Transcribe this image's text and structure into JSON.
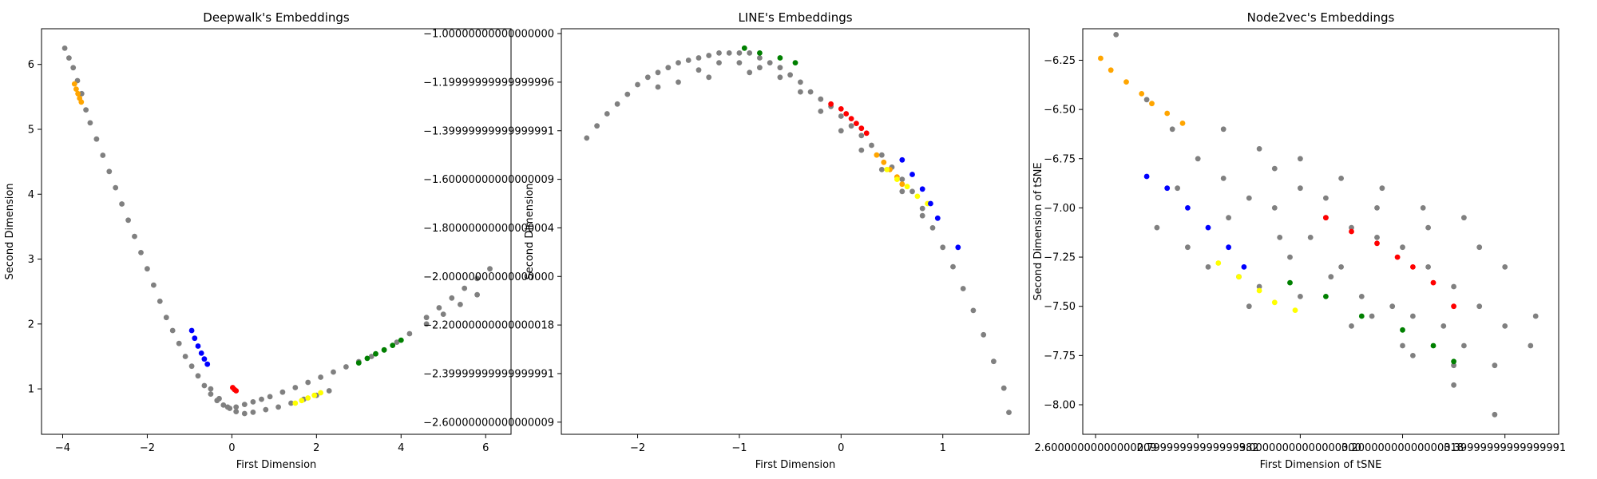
{
  "chart_data": [
    {
      "type": "scatter",
      "title": "Deepwalk's Embeddings",
      "xlabel": "First Dimension",
      "ylabel": "Second Dimension",
      "xlim": [
        -4.5,
        6.6
      ],
      "ylim": [
        0.3,
        6.55
      ],
      "xticks": [
        -4,
        -2,
        0,
        2,
        4,
        6
      ],
      "yticks": [
        1,
        2,
        3,
        4,
        5,
        6
      ],
      "grid": false,
      "series": [
        {
          "color": "#808080",
          "x": [
            -3.95,
            -3.85,
            -3.75,
            -3.65,
            -3.55,
            -3.45,
            -3.35,
            -3.2,
            -3.05,
            -2.9,
            -2.75,
            -2.6,
            -2.45,
            -2.3,
            -2.15,
            -2.0,
            -1.85,
            -1.7,
            -1.55,
            -1.4,
            -1.25,
            -1.1,
            -0.95,
            -0.8,
            -0.65,
            -0.5,
            -0.35,
            -0.2,
            -0.05,
            0.1,
            0.3,
            0.5,
            0.7,
            0.9,
            1.2,
            1.5,
            1.8,
            2.1,
            2.4,
            2.7,
            3.0,
            3.3,
            3.6,
            3.9,
            4.2,
            4.6,
            4.9,
            5.2,
            5.5,
            5.8,
            6.1,
            -0.5,
            -0.3,
            -0.1,
            0.1,
            0.3,
            0.5,
            0.8,
            1.1,
            1.4,
            1.7,
            2.0,
            2.3,
            4.6,
            5.0,
            5.4,
            5.8
          ],
          "y": [
            6.25,
            6.1,
            5.95,
            5.75,
            5.55,
            5.3,
            5.1,
            4.85,
            4.6,
            4.35,
            4.1,
            3.85,
            3.6,
            3.35,
            3.1,
            2.85,
            2.6,
            2.35,
            2.1,
            1.9,
            1.7,
            1.5,
            1.35,
            1.2,
            1.05,
            0.92,
            0.82,
            0.75,
            0.7,
            0.72,
            0.76,
            0.8,
            0.84,
            0.88,
            0.95,
            1.02,
            1.1,
            1.18,
            1.26,
            1.34,
            1.42,
            1.5,
            1.6,
            1.72,
            1.85,
            2.1,
            2.25,
            2.4,
            2.55,
            2.7,
            2.85,
            1.0,
            0.85,
            0.72,
            0.65,
            0.62,
            0.64,
            0.68,
            0.72,
            0.78,
            0.84,
            0.9,
            0.97,
            2.0,
            2.15,
            2.3,
            2.45
          ]
        },
        {
          "color": "#ffa500",
          "x": [
            -3.72,
            -3.68,
            -3.64,
            -3.6,
            -3.56
          ],
          "y": [
            5.7,
            5.62,
            5.55,
            5.48,
            5.42
          ]
        },
        {
          "color": "#0000ff",
          "x": [
            -0.95,
            -0.88,
            -0.8,
            -0.72,
            -0.65,
            -0.58
          ],
          "y": [
            1.9,
            1.78,
            1.66,
            1.55,
            1.46,
            1.38
          ]
        },
        {
          "color": "#ff0000",
          "x": [
            0.02,
            0.06,
            0.1
          ],
          "y": [
            1.02,
            0.99,
            0.97
          ]
        },
        {
          "color": "#ffff00",
          "x": [
            1.5,
            1.65,
            1.8,
            1.95,
            2.1
          ],
          "y": [
            0.78,
            0.82,
            0.86,
            0.9,
            0.94
          ]
        },
        {
          "color": "#008000",
          "x": [
            3.0,
            3.2,
            3.4,
            3.6,
            3.8,
            4.0
          ],
          "y": [
            1.4,
            1.47,
            1.54,
            1.6,
            1.67,
            1.75
          ]
        }
      ]
    },
    {
      "type": "scatter",
      "title": "LINE's Embeddings",
      "xlabel": "First Dimension",
      "ylabel": "Second Dimension",
      "xlim": [
        -2.75,
        1.85
      ],
      "ylim": [
        -2.65,
        -0.98
      ],
      "xticks": [
        -2,
        -1,
        0,
        1
      ],
      "yticks": [
        -2.6,
        -2.4,
        -2.2,
        -2.0,
        -1.8,
        -1.6,
        -1.4,
        -1.2,
        -1.0
      ],
      "grid": false,
      "series": [
        {
          "color": "#808080",
          "x": [
            -2.5,
            -2.4,
            -2.3,
            -2.2,
            -2.1,
            -2.0,
            -1.9,
            -1.8,
            -1.7,
            -1.6,
            -1.5,
            -1.4,
            -1.3,
            -1.2,
            -1.1,
            -1.0,
            -0.9,
            -0.8,
            -0.7,
            -0.6,
            -0.5,
            -0.4,
            -0.3,
            -0.2,
            -0.1,
            0.0,
            0.1,
            0.2,
            0.3,
            0.4,
            0.5,
            0.6,
            0.7,
            0.8,
            0.9,
            1.0,
            1.1,
            1.2,
            1.3,
            1.4,
            1.5,
            1.6,
            1.65,
            -1.6,
            -1.4,
            -1.2,
            -1.0,
            -0.8,
            -0.6,
            -0.4,
            -0.2,
            0.0,
            0.2,
            0.4,
            0.6,
            0.8,
            -1.8,
            -1.3,
            -0.9
          ],
          "y": [
            -1.43,
            -1.38,
            -1.33,
            -1.29,
            -1.25,
            -1.21,
            -1.18,
            -1.16,
            -1.14,
            -1.12,
            -1.11,
            -1.1,
            -1.09,
            -1.08,
            -1.08,
            -1.08,
            -1.08,
            -1.1,
            -1.12,
            -1.14,
            -1.17,
            -1.2,
            -1.24,
            -1.27,
            -1.3,
            -1.34,
            -1.38,
            -1.42,
            -1.46,
            -1.5,
            -1.55,
            -1.6,
            -1.65,
            -1.72,
            -1.8,
            -1.88,
            -1.96,
            -2.05,
            -2.14,
            -2.24,
            -2.35,
            -2.46,
            -2.56,
            -1.2,
            -1.15,
            -1.12,
            -1.12,
            -1.14,
            -1.18,
            -1.24,
            -1.32,
            -1.4,
            -1.48,
            -1.56,
            -1.65,
            -1.75,
            -1.22,
            -1.18,
            -1.16
          ]
        },
        {
          "color": "#008000",
          "x": [
            -0.95,
            -0.8,
            -0.6,
            -0.45
          ],
          "y": [
            -1.06,
            -1.08,
            -1.1,
            -1.12
          ]
        },
        {
          "color": "#ff0000",
          "x": [
            -0.1,
            0.0,
            0.05,
            0.1,
            0.15,
            0.2,
            0.25
          ],
          "y": [
            -1.29,
            -1.31,
            -1.33,
            -1.35,
            -1.37,
            -1.39,
            -1.41
          ]
        },
        {
          "color": "#ffa500",
          "x": [
            0.35,
            0.42,
            0.48,
            0.55,
            0.6
          ],
          "y": [
            -1.5,
            -1.53,
            -1.56,
            -1.59,
            -1.62
          ]
        },
        {
          "color": "#ffff00",
          "x": [
            0.45,
            0.55,
            0.65,
            0.75,
            0.85
          ],
          "y": [
            -1.56,
            -1.6,
            -1.63,
            -1.67,
            -1.7
          ]
        },
        {
          "color": "#0000ff",
          "x": [
            0.6,
            0.7,
            0.8,
            0.88,
            0.95,
            1.15
          ],
          "y": [
            -1.52,
            -1.58,
            -1.64,
            -1.7,
            -1.76,
            -1.88
          ]
        }
      ]
    },
    {
      "type": "scatter",
      "title": "Node2vec's Embeddings",
      "xlabel": "First Dimension of tSNE",
      "ylabel": "Second Dimension of tSNE",
      "xlim": [
        2.575,
        3.505
      ],
      "ylim": [
        -8.15,
        -6.09
      ],
      "xticks": [
        2.6,
        2.8,
        3.0,
        3.2,
        3.4
      ],
      "yticks": [
        -8.0,
        -7.75,
        -7.5,
        -7.25,
        -7.0,
        -6.75,
        -6.5,
        -6.25
      ],
      "grid": false,
      "series": [
        {
          "color": "#808080",
          "x": [
            2.64,
            2.7,
            2.75,
            2.8,
            2.85,
            2.9,
            2.95,
            3.0,
            3.05,
            3.1,
            3.15,
            3.2,
            3.25,
            3.3,
            3.35,
            3.4,
            3.45,
            2.78,
            2.82,
            2.88,
            2.92,
            2.98,
            3.02,
            3.08,
            3.12,
            3.18,
            3.22,
            3.28,
            3.32,
            3.38,
            2.72,
            2.9,
            3.0,
            3.1,
            3.2,
            3.3,
            2.95,
            3.05,
            3.15,
            3.25,
            3.35,
            2.85,
            2.92,
            3.0,
            3.08,
            3.16,
            3.24,
            3.32,
            3.4,
            3.46,
            2.76,
            2.86,
            2.96,
            3.06,
            3.14,
            3.22,
            3.3,
            3.38
          ],
          "y": [
            -6.12,
            -6.45,
            -6.6,
            -6.75,
            -6.85,
            -6.95,
            -7.0,
            -6.9,
            -7.05,
            -7.1,
            -7.15,
            -7.2,
            -7.3,
            -7.4,
            -7.5,
            -7.6,
            -7.7,
            -7.2,
            -7.3,
            -7.35,
            -7.4,
            -7.25,
            -7.15,
            -7.3,
            -7.45,
            -7.5,
            -7.55,
            -7.6,
            -7.7,
            -7.8,
            -7.1,
            -7.5,
            -7.45,
            -7.6,
            -7.7,
            -7.8,
            -6.8,
            -6.95,
            -7.0,
            -7.1,
            -7.2,
            -6.6,
            -6.7,
            -6.75,
            -6.85,
            -6.9,
            -7.0,
            -7.05,
            -7.3,
            -7.55,
            -6.9,
            -7.05,
            -7.15,
            -7.35,
            -7.55,
            -7.75,
            -7.9,
            -8.05
          ]
        },
        {
          "color": "#ffa500",
          "x": [
            2.61,
            2.63,
            2.66,
            2.69,
            2.71,
            2.74,
            2.77
          ],
          "y": [
            -6.24,
            -6.3,
            -6.36,
            -6.42,
            -6.47,
            -6.52,
            -6.57
          ]
        },
        {
          "color": "#0000ff",
          "x": [
            2.7,
            2.74,
            2.78,
            2.82,
            2.86,
            2.89
          ],
          "y": [
            -6.84,
            -6.9,
            -7.0,
            -7.1,
            -7.2,
            -7.3
          ]
        },
        {
          "color": "#ffff00",
          "x": [
            2.84,
            2.88,
            2.92,
            2.95,
            2.99
          ],
          "y": [
            -7.28,
            -7.35,
            -7.42,
            -7.48,
            -7.52
          ]
        },
        {
          "color": "#008000",
          "x": [
            2.98,
            3.05,
            3.12,
            3.2,
            3.26,
            3.3
          ],
          "y": [
            -7.38,
            -7.45,
            -7.55,
            -7.62,
            -7.7,
            -7.78
          ]
        },
        {
          "color": "#ff0000",
          "x": [
            3.05,
            3.1,
            3.15,
            3.19,
            3.22,
            3.26,
            3.3
          ],
          "y": [
            -7.05,
            -7.12,
            -7.18,
            -7.25,
            -7.3,
            -7.38,
            -7.5
          ]
        }
      ]
    }
  ]
}
